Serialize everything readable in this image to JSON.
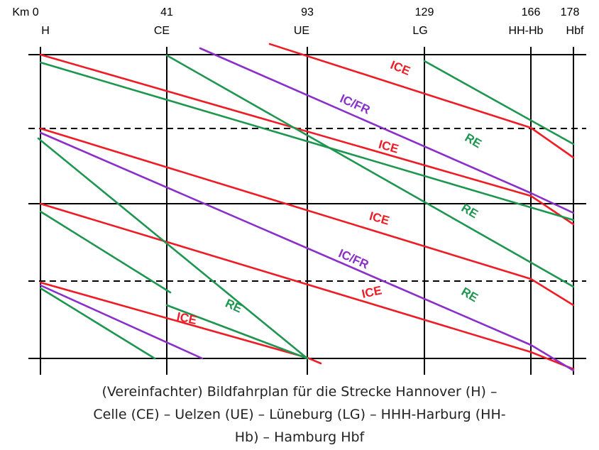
{
  "stations": [
    {
      "km_label": "Km 0",
      "code": "H",
      "km": 0
    },
    {
      "km_label": "41",
      "code": "CE",
      "km": 41
    },
    {
      "km_label": "93",
      "code": "UE",
      "km": 93
    },
    {
      "km_label": "129",
      "code": "LG",
      "km": 129
    },
    {
      "km_label": "166",
      "code": "HH-Hb",
      "km": 166
    },
    {
      "km_label": "178",
      "code": "Hbf",
      "km": 178
    }
  ],
  "colors": {
    "ICE": "#ee1c25",
    "IC/FR": "#8a2fc9",
    "RE": "#1e9650",
    "grid": "#000000"
  },
  "train_labels": [
    {
      "text": "ICE",
      "type": "ICE"
    },
    {
      "text": "IC/FR",
      "type": "IC/FR"
    },
    {
      "text": "RE",
      "type": "RE"
    },
    {
      "text": "ICE",
      "type": "ICE"
    },
    {
      "text": "RE",
      "type": "RE"
    },
    {
      "text": "ICE",
      "type": "ICE"
    },
    {
      "text": "IC/FR",
      "type": "IC/FR"
    },
    {
      "text": "ICE",
      "type": "ICE"
    },
    {
      "text": "RE",
      "type": "RE"
    },
    {
      "text": "RE",
      "type": "RE"
    },
    {
      "text": "ICE",
      "type": "ICE"
    }
  ],
  "caption": [
    "(Vereinfachter) Bildfahrplan für die Strecke Hannover (H) –",
    "Celle (CE) – Uelzen (UE) – Lüneburg (LG) – HHH-Harburg (HH-",
    "Hb) – Hamburg Hbf"
  ]
}
